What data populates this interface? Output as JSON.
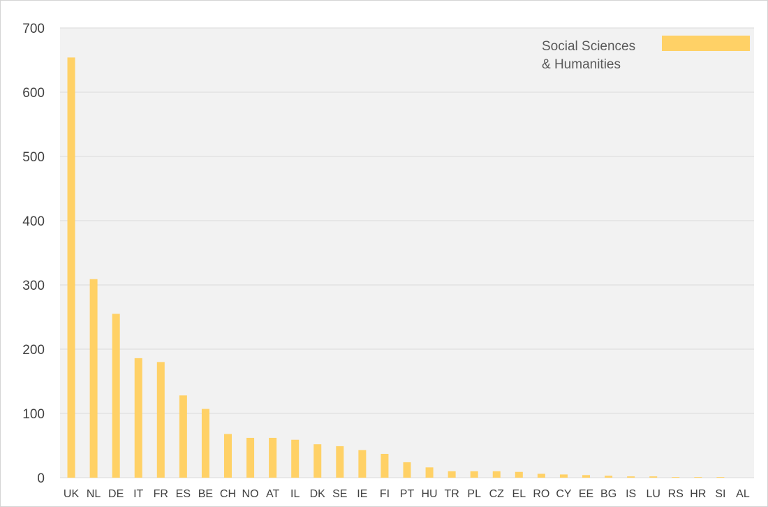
{
  "chart_data": {
    "type": "bar",
    "title": "",
    "xlabel": "",
    "ylabel": "",
    "ylim": [
      0,
      700
    ],
    "yticks": [
      "0",
      "100",
      "200",
      "300",
      "400",
      "500",
      "600",
      "700"
    ],
    "grid": "horizontal",
    "legend_position": "top-right",
    "background_color": "#f2f2f2",
    "gridline_color": "#d9d9d9",
    "categories": [
      "UK",
      "NL",
      "DE",
      "IT",
      "FR",
      "ES",
      "BE",
      "CH",
      "NO",
      "AT",
      "IL",
      "DK",
      "SE",
      "IE",
      "FI",
      "PT",
      "HU",
      "TR",
      "PL",
      "CZ",
      "EL",
      "RO",
      "CY",
      "EE",
      "BG",
      "IS",
      "LU",
      "RS",
      "HR",
      "SI",
      "AL"
    ],
    "series": [
      {
        "name": "Social Sciences & Humanities",
        "legend_lines": [
          "Social Sciences",
          "& Humanities"
        ],
        "color": "#ffd166",
        "values": [
          654,
          309,
          255,
          186,
          180,
          128,
          107,
          68,
          62,
          62,
          59,
          52,
          49,
          43,
          37,
          24,
          16,
          10,
          10,
          10,
          9,
          6,
          5,
          4,
          3,
          2,
          2,
          1,
          1,
          1,
          0
        ]
      }
    ]
  }
}
